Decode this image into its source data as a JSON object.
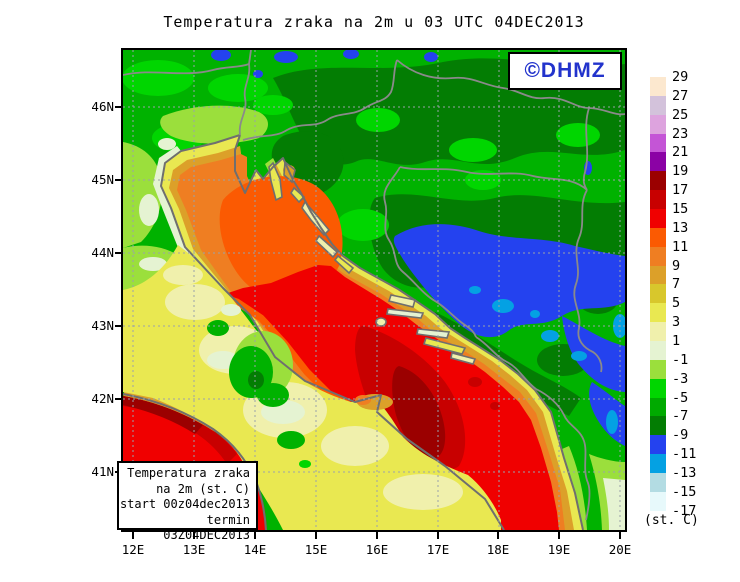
{
  "title": "Temperatura zraka na 2m u 03 UTC 04DEC2013",
  "watermark": {
    "text": "©DHMZ",
    "color": "#2233cc"
  },
  "info_box": {
    "lines": [
      "Temperatura zraka",
      "na 2m (st. C)",
      "start 00z04dec2013",
      "termin 03Z04DEC2013"
    ]
  },
  "axes": {
    "lat": [
      "46N",
      "45N",
      "44N",
      "43N",
      "42N",
      "41N"
    ],
    "lon": [
      "12E",
      "13E",
      "14E",
      "15E",
      "16E",
      "17E",
      "18E",
      "19E",
      "20E"
    ]
  },
  "legend": {
    "unit_label": "(st. C)",
    "boundary_labels_c": [
      "29",
      "27",
      "25",
      "23",
      "21",
      "19",
      "17",
      "15",
      "13",
      "11",
      "9",
      "7",
      "5",
      "3",
      "1",
      "-1",
      "-3",
      "-5",
      "-7",
      "-9",
      "-11",
      "-13",
      "-15",
      "-17"
    ],
    "interval_colors_top_down": [
      "#fce8cf",
      "#d3c2db",
      "#dda3de",
      "#c455d6",
      "#8b02a5",
      "#9b0000",
      "#c80000",
      "#f00000",
      "#fb5a02",
      "#ef7e22",
      "#dca029",
      "#d8c72c",
      "#e9e851",
      "#f0f0ac",
      "#e5f3d2",
      "#9bdf3c",
      "#00d600",
      "#00aa00",
      "#037d03",
      "#2442ef",
      "#04a1e3",
      "#b3dce3",
      "#e7f9fb"
    ]
  },
  "map": {
    "variable": "Temperatura zraka na 2m",
    "unit": "st. C",
    "region_colors": {
      "land_green": "#00b200",
      "dark_green": "#037d03",
      "bright_green": "#00d600",
      "lime": "#9bdf3c",
      "pale_green_white": "#e5f3d2",
      "pale_yellow": "#f0f0ac",
      "yellow": "#e9e851",
      "mustard": "#dca029",
      "orange": "#ef7e22",
      "orange_red": "#fb5a02",
      "red": "#f00000",
      "dark_red": "#c80000",
      "maroon": "#9b0000",
      "cold_blue": "#2442ef",
      "azure": "#04a1e3",
      "coastline_gray": "#6f6f6f",
      "border_gray": "#8a8a8a"
    }
  }
}
